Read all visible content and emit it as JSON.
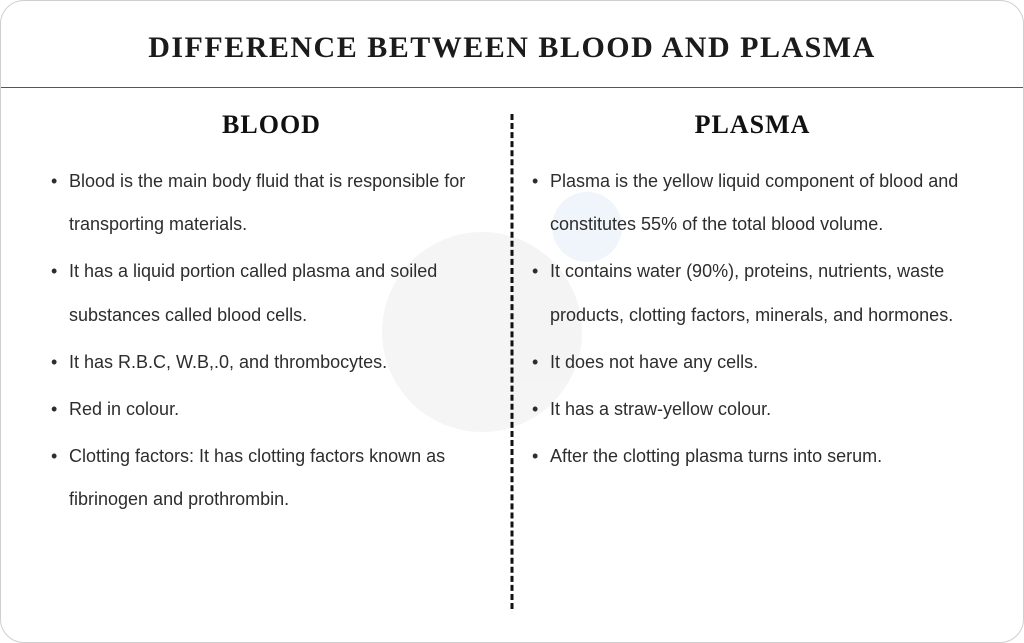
{
  "main_title": "DIFFERENCE BETWEEN BLOOD AND PLASMA",
  "accent_rule_color": "#e01b24",
  "border_color": "#cfcfcf",
  "text_color": "#2d2d2d",
  "heading_color": "#111111",
  "background_color": "#ffffff",
  "divider_style": "dashed",
  "columns": {
    "left": {
      "heading": "BLOOD",
      "items": [
        "Blood is the main body fluid that is responsible for transporting materials.",
        "It has a liquid portion called plasma and soiled substances called blood cells.",
        "It has R.B.C, W.B,.0, and thrombocytes.",
        "Red in colour.",
        "Clotting factors: It has clotting factors known as fibrinogen and prothrombin."
      ]
    },
    "right": {
      "heading": "PLASMA",
      "items": [
        "Plasma is the yellow liquid component of blood and constitutes 55% of the total blood volume.",
        "It contains water (90%), proteins, nutrients, waste products, clotting factors, minerals, and hormones.",
        "It does not have any cells.",
        "It has a straw-yellow colour.",
        "After the clotting plasma turns into serum."
      ]
    }
  },
  "watermark": {
    "big_color": "#9aa0a6",
    "small_color": "#6ea8d8",
    "opacity": 0.1
  }
}
